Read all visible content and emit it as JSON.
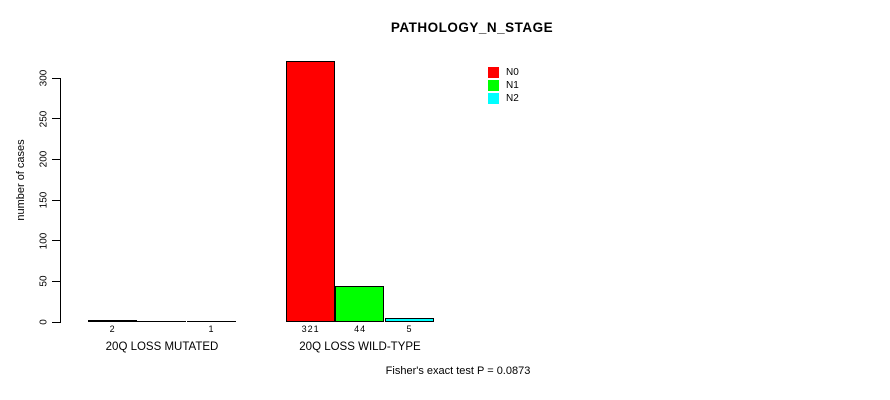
{
  "title": "PATHOLOGY_N_STAGE",
  "footer": "Fisher's exact test P = 0.0873",
  "y_axis": {
    "label": "number of cases",
    "ticks": [
      0,
      50,
      100,
      150,
      200,
      250,
      300
    ]
  },
  "legend": {
    "entries": [
      {
        "label": "N0",
        "color": "#FF0000"
      },
      {
        "label": "N1",
        "color": "#00FF00"
      },
      {
        "label": "N2",
        "color": "#00FFFF"
      }
    ]
  },
  "chart_data": {
    "type": "bar",
    "title": "PATHOLOGY_N_STAGE",
    "xlabel": "",
    "ylabel": "number of cases",
    "ylim": [
      0,
      300
    ],
    "grid": false,
    "legend_position": "top-right",
    "categories": [
      "20Q LOSS MUTATED",
      "20Q LOSS WILD-TYPE"
    ],
    "series": [
      {
        "name": "N0",
        "color": "#FF0000",
        "values": [
          2,
          321
        ]
      },
      {
        "name": "N1",
        "color": "#00FF00",
        "values": [
          0,
          44
        ]
      },
      {
        "name": "N2",
        "color": "#00FFFF",
        "values": [
          1,
          5
        ]
      }
    ],
    "bar_value_labels": [
      [
        "2",
        "",
        "1"
      ],
      [
        "321",
        "44",
        "5"
      ]
    ],
    "annotation": "Fisher's exact test P = 0.0873"
  }
}
